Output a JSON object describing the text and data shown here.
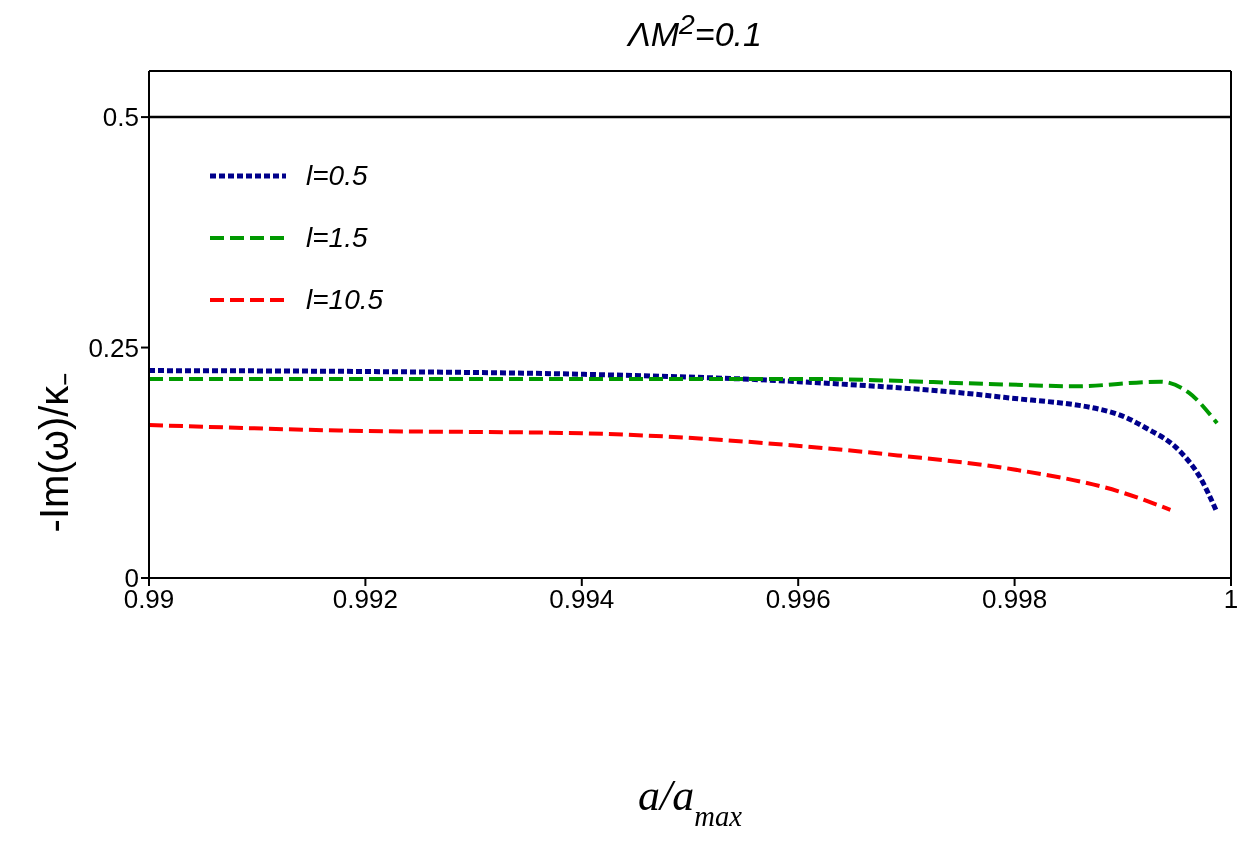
{
  "chart_data": {
    "type": "line",
    "title": "ΛM$^{2}$=0.1",
    "xlabel": "a/a$_{max}$",
    "ylabel": "-Im(ω)/κ₋",
    "xlim": [
      0.99,
      1
    ],
    "xticks": [
      0.99,
      0.992,
      0.994,
      0.996,
      0.998,
      1
    ],
    "ylim": [
      0,
      0.55
    ],
    "yticks": [
      0,
      0.25,
      0.5
    ],
    "legend": "top left",
    "marker": "none",
    "ref_lines": [
      {
        "axis": "y",
        "value": 0.5,
        "color": "#000000"
      }
    ],
    "series": [
      {
        "name": "l=0.5",
        "color": "#00008b",
        "line_style": "dotted",
        "x": [
          0.99,
          0.992,
          0.994,
          0.996,
          0.9979,
          0.99889,
          0.99921,
          0.99954,
          0.99971,
          0.99986
        ],
        "values": [
          0.225,
          0.224,
          0.221,
          0.213,
          0.196,
          0.18,
          0.163,
          0.136,
          0.11,
          0.074
        ]
      },
      {
        "name": "l=1.5",
        "color": "#009900",
        "line_style": "dashed",
        "x": [
          0.99,
          0.992,
          0.994,
          0.996,
          0.9979,
          0.99856,
          0.99935,
          0.99961,
          0.99987
        ],
        "values": [
          0.216,
          0.216,
          0.216,
          0.216,
          0.21,
          0.208,
          0.213,
          0.201,
          0.168
        ]
      },
      {
        "name": "l=10.5",
        "color": "#ff0000",
        "line_style": "dashed",
        "x": [
          0.99,
          0.99176,
          0.994,
          0.99594,
          0.99692,
          0.99798,
          0.99896,
          0.99944
        ],
        "values": [
          0.166,
          0.16,
          0.157,
          0.144,
          0.133,
          0.118,
          0.094,
          0.074
        ]
      }
    ]
  }
}
